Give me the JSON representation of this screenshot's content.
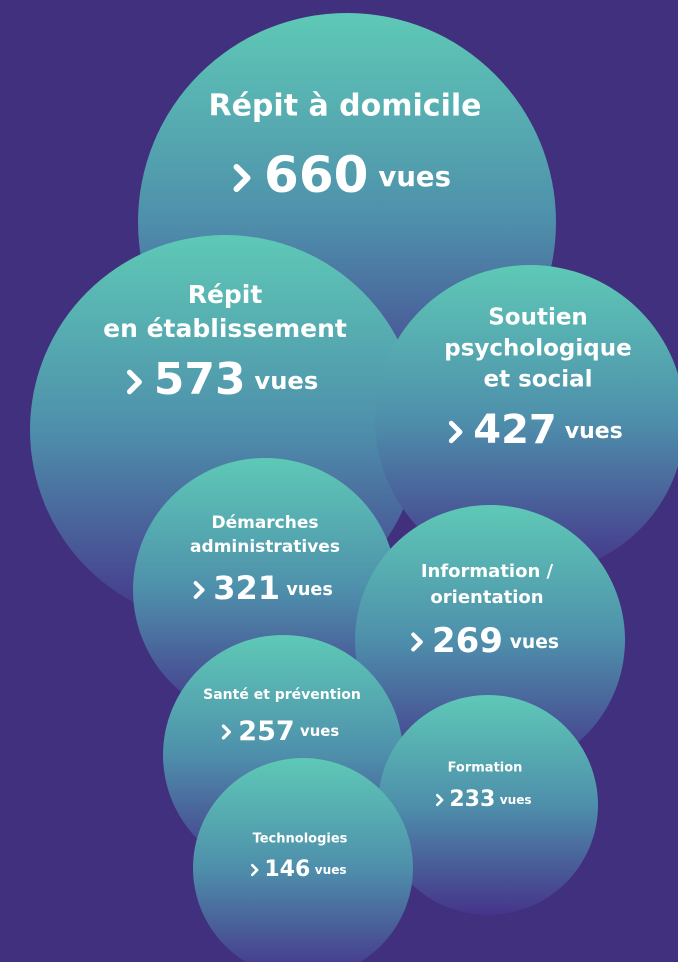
{
  "chart_data": {
    "type": "bubble",
    "categories": [
      [
        "Répit à domicile"
      ],
      [
        "Répit",
        "en établissement"
      ],
      [
        "Soutien",
        "psychologique",
        "et social"
      ],
      [
        "Démarches",
        "administratives"
      ],
      [
        "Information /",
        "orientation"
      ],
      [
        "Santé et prévention"
      ],
      [
        "Formation"
      ],
      [
        "Technologies"
      ]
    ],
    "values": [
      660,
      573,
      427,
      321,
      269,
      257,
      233,
      146
    ],
    "unit": "vues",
    "colors": [
      "#5ec9b6",
      "#4e8fab",
      "#45348a"
    ]
  }
}
